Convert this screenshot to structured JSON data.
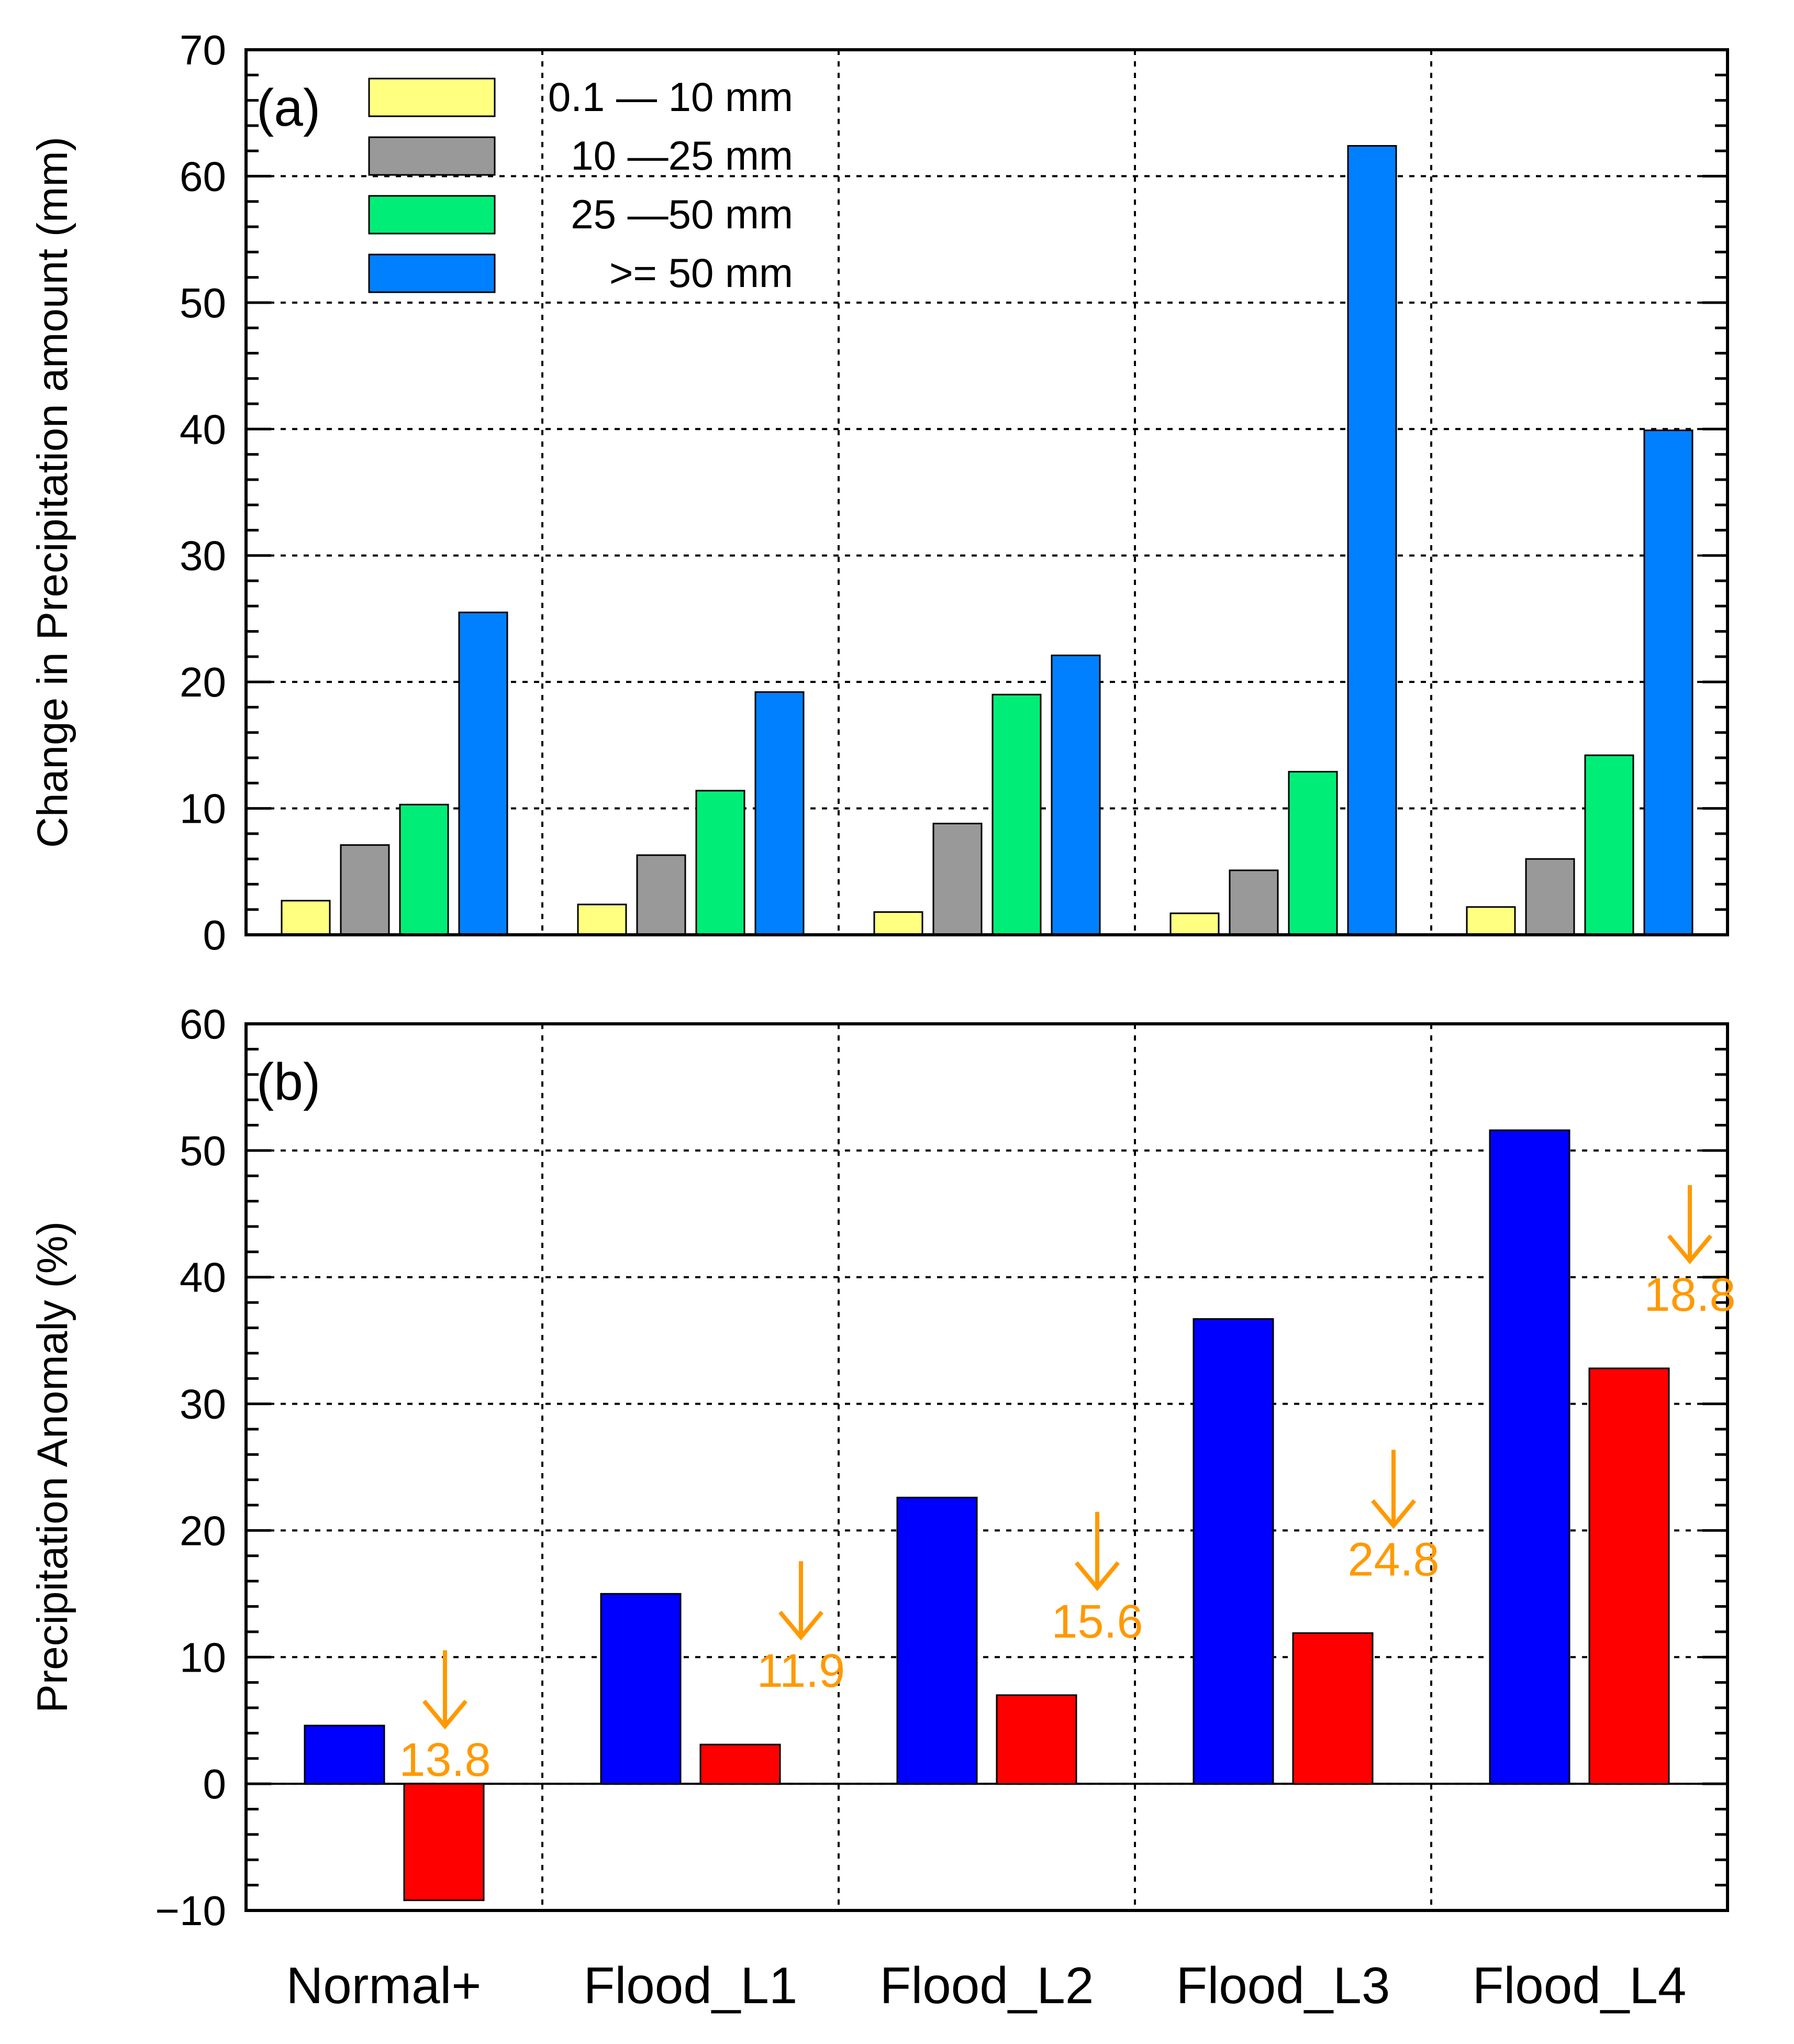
{
  "chart_data": [
    {
      "panel": "(a)",
      "type": "bar",
      "ylabel": "Change in Precipitation amount (mm)",
      "ylim": [
        0,
        70
      ],
      "yticks": [
        0,
        10,
        20,
        30,
        40,
        50,
        60,
        70
      ],
      "categories": [
        "Normal+",
        "Flood_L1",
        "Flood_L2",
        "Flood_L3",
        "Flood_L4"
      ],
      "series": [
        {
          "name": "0.1—10 mm",
          "legend_label": "0.1 — 10 mm",
          "color": "#ffff80",
          "values": [
            2.7,
            2.4,
            1.8,
            1.7,
            2.2
          ]
        },
        {
          "name": "10—25 mm",
          "legend_label": "10 —25  mm",
          "color": "#999999",
          "values": [
            7.1,
            6.3,
            8.8,
            5.1,
            6.0
          ]
        },
        {
          "name": "25—50 mm",
          "legend_label": "25 —50  mm",
          "color": "#00ee77",
          "values": [
            10.3,
            11.4,
            19.0,
            12.9,
            14.2
          ]
        },
        {
          "name": ">= 50 mm",
          "legend_label": ">=  50  mm",
          "color": "#0080ff",
          "values": [
            25.5,
            19.2,
            22.1,
            62.4,
            39.9
          ]
        }
      ],
      "grid": true,
      "legend_position": "top-left"
    },
    {
      "panel": "(b)",
      "type": "bar",
      "ylabel": "Precipitation Anomaly (%)",
      "ylim": [
        -10,
        60
      ],
      "yticks": [
        -10,
        0,
        10,
        20,
        30,
        40,
        50,
        60
      ],
      "ytick_labels": [
        "−10",
        "0",
        "10",
        "20",
        "30",
        "40",
        "50",
        "60"
      ],
      "categories": [
        "Normal+",
        "Flood_L1",
        "Flood_L2",
        "Flood_L3",
        "Flood_L4"
      ],
      "series": [
        {
          "name": "blue",
          "color": "#0000ff",
          "values": [
            4.6,
            15.0,
            22.6,
            36.7,
            51.6
          ]
        },
        {
          "name": "red",
          "color": "#ff0000",
          "values": [
            -9.2,
            3.1,
            7.0,
            11.9,
            32.8
          ]
        }
      ],
      "annotations": [
        {
          "category": "Normal+",
          "text": "13.8",
          "arrow": "down"
        },
        {
          "category": "Flood_L1",
          "text": "11.9",
          "arrow": "down"
        },
        {
          "category": "Flood_L2",
          "text": "15.6",
          "arrow": "down"
        },
        {
          "category": "Flood_L3",
          "text": "24.8",
          "arrow": "down"
        },
        {
          "category": "Flood_L4",
          "text": "18.8",
          "arrow": "down"
        }
      ],
      "annotation_color": "#ff9900",
      "grid": true
    }
  ]
}
